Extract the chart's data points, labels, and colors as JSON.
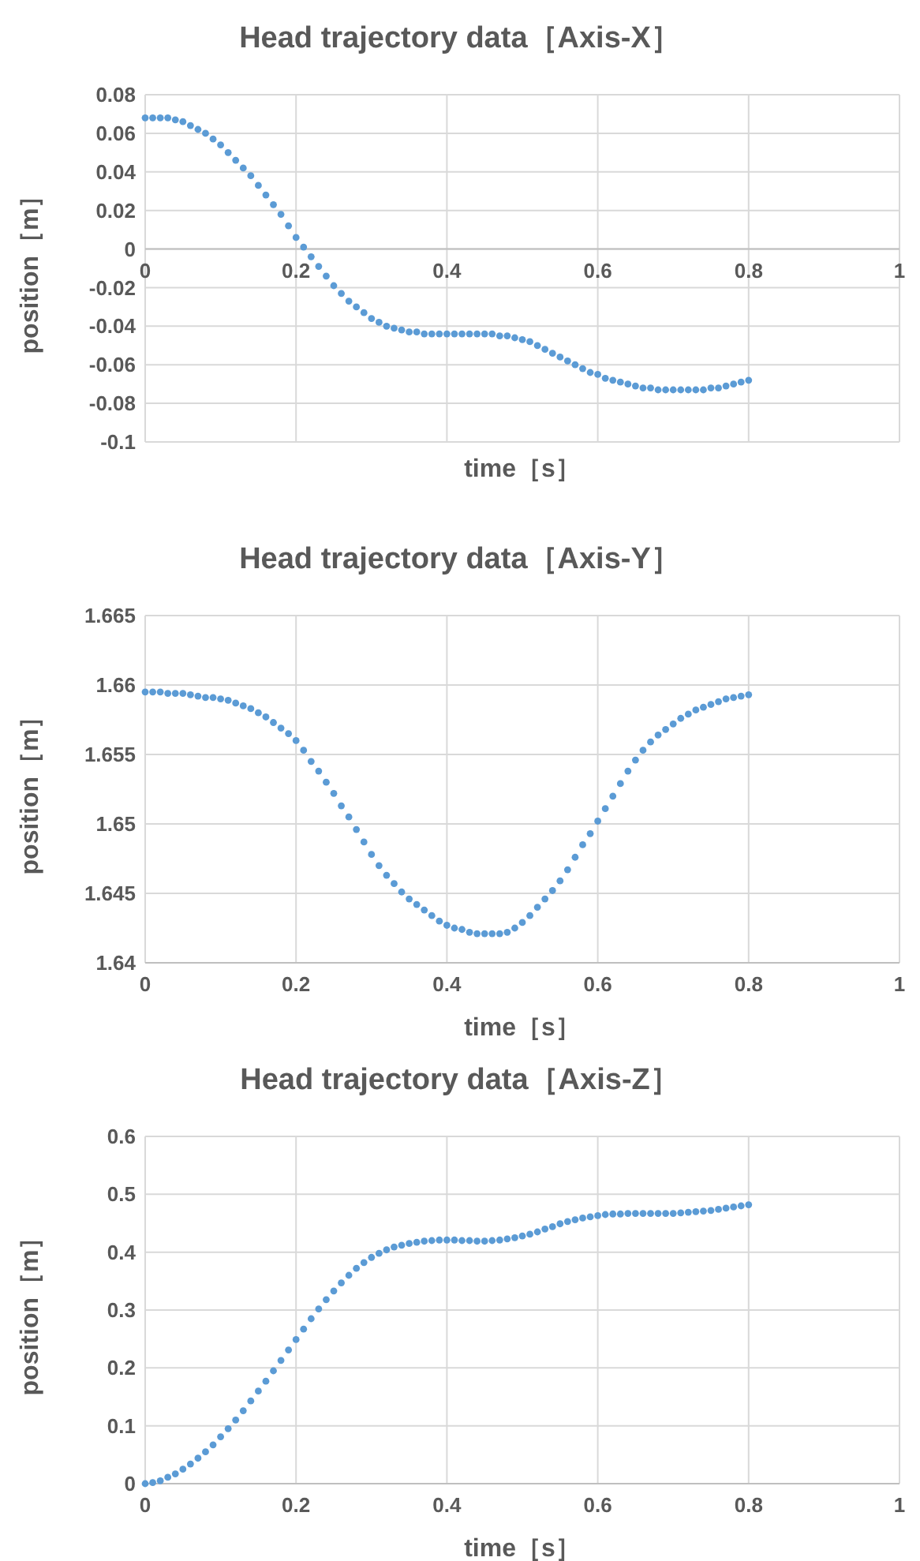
{
  "chart_data": [
    {
      "type": "scatter",
      "title": "Head trajectory data［Axis-X］",
      "xlabel": "time［s］",
      "ylabel": "position［m］",
      "xlim": [
        0,
        1
      ],
      "xticks": [
        0,
        0.2,
        0.4,
        0.6,
        0.8,
        1
      ],
      "ylim": [
        -0.1,
        0.08
      ],
      "yticks": [
        -0.1,
        -0.08,
        -0.06,
        -0.04,
        -0.02,
        0,
        0.02,
        0.04,
        0.06,
        0.08
      ],
      "grid": true,
      "marker": "circle",
      "x": [
        0,
        0.01,
        0.02,
        0.03,
        0.04,
        0.05,
        0.06,
        0.07,
        0.08,
        0.09,
        0.1,
        0.11,
        0.12,
        0.13,
        0.14,
        0.15,
        0.16,
        0.17,
        0.18,
        0.19,
        0.2,
        0.21,
        0.22,
        0.23,
        0.24,
        0.25,
        0.26,
        0.27,
        0.28,
        0.29,
        0.3,
        0.31,
        0.32,
        0.33,
        0.34,
        0.35,
        0.36,
        0.37,
        0.38,
        0.39,
        0.4,
        0.41,
        0.42,
        0.43,
        0.44,
        0.45,
        0.46,
        0.47,
        0.48,
        0.49,
        0.5,
        0.51,
        0.52,
        0.53,
        0.54,
        0.55,
        0.56,
        0.57,
        0.58,
        0.59,
        0.6,
        0.61,
        0.62,
        0.63,
        0.64,
        0.65,
        0.66,
        0.67,
        0.68,
        0.69,
        0.7,
        0.71,
        0.72,
        0.73,
        0.74,
        0.75,
        0.76,
        0.77,
        0.78,
        0.79,
        0.8
      ],
      "series": [
        {
          "color": "#5b9bd5",
          "values": [
            0.068,
            0.068,
            0.068,
            0.068,
            0.067,
            0.066,
            0.064,
            0.062,
            0.06,
            0.057,
            0.054,
            0.05,
            0.046,
            0.042,
            0.038,
            0.033,
            0.028,
            0.023,
            0.018,
            0.012,
            0.006,
            0.001,
            -0.004,
            -0.009,
            -0.014,
            -0.019,
            -0.023,
            -0.027,
            -0.03,
            -0.033,
            -0.036,
            -0.038,
            -0.04,
            -0.041,
            -0.042,
            -0.043,
            -0.043,
            -0.044,
            -0.044,
            -0.044,
            -0.044,
            -0.044,
            -0.044,
            -0.044,
            -0.044,
            -0.044,
            -0.044,
            -0.045,
            -0.045,
            -0.046,
            -0.047,
            -0.048,
            -0.05,
            -0.052,
            -0.054,
            -0.056,
            -0.058,
            -0.06,
            -0.062,
            -0.064,
            -0.065,
            -0.067,
            -0.068,
            -0.069,
            -0.07,
            -0.071,
            -0.072,
            -0.072,
            -0.073,
            -0.073,
            -0.073,
            -0.073,
            -0.073,
            -0.073,
            -0.073,
            -0.072,
            -0.072,
            -0.071,
            -0.07,
            -0.069,
            -0.068
          ]
        }
      ]
    },
    {
      "type": "scatter",
      "title": "Head trajectory data［Axis-Y］",
      "xlabel": "time［s］",
      "ylabel": "position［m］",
      "xlim": [
        0,
        1
      ],
      "xticks": [
        0,
        0.2,
        0.4,
        0.6,
        0.8,
        1
      ],
      "ylim": [
        1.64,
        1.665
      ],
      "yticks": [
        1.64,
        1.645,
        1.65,
        1.655,
        1.66,
        1.665
      ],
      "grid": true,
      "marker": "circle",
      "x": [
        0,
        0.01,
        0.02,
        0.03,
        0.04,
        0.05,
        0.06,
        0.07,
        0.08,
        0.09,
        0.1,
        0.11,
        0.12,
        0.13,
        0.14,
        0.15,
        0.16,
        0.17,
        0.18,
        0.19,
        0.2,
        0.21,
        0.22,
        0.23,
        0.24,
        0.25,
        0.26,
        0.27,
        0.28,
        0.29,
        0.3,
        0.31,
        0.32,
        0.33,
        0.34,
        0.35,
        0.36,
        0.37,
        0.38,
        0.39,
        0.4,
        0.41,
        0.42,
        0.43,
        0.44,
        0.45,
        0.46,
        0.47,
        0.48,
        0.49,
        0.5,
        0.51,
        0.52,
        0.53,
        0.54,
        0.55,
        0.56,
        0.57,
        0.58,
        0.59,
        0.6,
        0.61,
        0.62,
        0.63,
        0.64,
        0.65,
        0.66,
        0.67,
        0.68,
        0.69,
        0.7,
        0.71,
        0.72,
        0.73,
        0.74,
        0.75,
        0.76,
        0.77,
        0.78,
        0.79,
        0.8
      ],
      "series": [
        {
          "color": "#5b9bd5",
          "values": [
            1.6595,
            1.6595,
            1.6595,
            1.6594,
            1.6594,
            1.6594,
            1.6593,
            1.6592,
            1.6591,
            1.6591,
            1.659,
            1.6589,
            1.6587,
            1.6585,
            1.6583,
            1.658,
            1.6577,
            1.6573,
            1.6569,
            1.6565,
            1.656,
            1.6553,
            1.6545,
            1.6538,
            1.653,
            1.6522,
            1.6513,
            1.6505,
            1.6496,
            1.6487,
            1.6478,
            1.647,
            1.6463,
            1.6457,
            1.6451,
            1.6446,
            1.6442,
            1.6438,
            1.6434,
            1.643,
            1.6427,
            1.6425,
            1.6424,
            1.6422,
            1.6421,
            1.6421,
            1.6421,
            1.6421,
            1.6422,
            1.6425,
            1.6429,
            1.6434,
            1.644,
            1.6446,
            1.6452,
            1.6459,
            1.6467,
            1.6476,
            1.6485,
            1.6493,
            1.6502,
            1.6511,
            1.652,
            1.6529,
            1.6538,
            1.6546,
            1.6553,
            1.6559,
            1.6564,
            1.6568,
            1.6572,
            1.6576,
            1.6579,
            1.6582,
            1.6584,
            1.6586,
            1.6588,
            1.659,
            1.6591,
            1.6592,
            1.6593
          ]
        }
      ]
    },
    {
      "type": "scatter",
      "title": "Head trajectory data［Axis-Z］",
      "xlabel": "time［s］",
      "ylabel": "position［m］",
      "xlim": [
        0,
        1
      ],
      "xticks": [
        0,
        0.2,
        0.4,
        0.6,
        0.8,
        1
      ],
      "ylim": [
        0,
        0.6
      ],
      "yticks": [
        0,
        0.1,
        0.2,
        0.3,
        0.4,
        0.5,
        0.6
      ],
      "grid": true,
      "marker": "circle",
      "x": [
        0,
        0.01,
        0.02,
        0.03,
        0.04,
        0.05,
        0.06,
        0.07,
        0.08,
        0.09,
        0.1,
        0.11,
        0.12,
        0.13,
        0.14,
        0.15,
        0.16,
        0.17,
        0.18,
        0.19,
        0.2,
        0.21,
        0.22,
        0.23,
        0.24,
        0.25,
        0.26,
        0.27,
        0.28,
        0.29,
        0.3,
        0.31,
        0.32,
        0.33,
        0.34,
        0.35,
        0.36,
        0.37,
        0.38,
        0.39,
        0.4,
        0.41,
        0.42,
        0.43,
        0.44,
        0.45,
        0.46,
        0.47,
        0.48,
        0.49,
        0.5,
        0.51,
        0.52,
        0.53,
        0.54,
        0.55,
        0.56,
        0.57,
        0.58,
        0.59,
        0.6,
        0.61,
        0.62,
        0.63,
        0.64,
        0.65,
        0.66,
        0.67,
        0.68,
        0.69,
        0.7,
        0.71,
        0.72,
        0.73,
        0.74,
        0.75,
        0.76,
        0.77,
        0.78,
        0.79,
        0.8
      ],
      "series": [
        {
          "color": "#5b9bd5",
          "values": [
            0,
            0.002,
            0.005,
            0.011,
            0.017,
            0.025,
            0.034,
            0.044,
            0.055,
            0.067,
            0.081,
            0.095,
            0.11,
            0.126,
            0.143,
            0.16,
            0.177,
            0.195,
            0.213,
            0.231,
            0.249,
            0.267,
            0.285,
            0.302,
            0.318,
            0.333,
            0.347,
            0.36,
            0.372,
            0.382,
            0.391,
            0.398,
            0.404,
            0.409,
            0.412,
            0.415,
            0.417,
            0.419,
            0.42,
            0.421,
            0.421,
            0.421,
            0.42,
            0.42,
            0.419,
            0.419,
            0.42,
            0.421,
            0.423,
            0.425,
            0.428,
            0.431,
            0.435,
            0.44,
            0.444,
            0.449,
            0.453,
            0.456,
            0.459,
            0.461,
            0.463,
            0.465,
            0.466,
            0.466,
            0.467,
            0.467,
            0.467,
            0.467,
            0.467,
            0.467,
            0.467,
            0.468,
            0.469,
            0.47,
            0.471,
            0.472,
            0.474,
            0.476,
            0.478,
            0.48,
            0.482
          ]
        }
      ]
    }
  ]
}
